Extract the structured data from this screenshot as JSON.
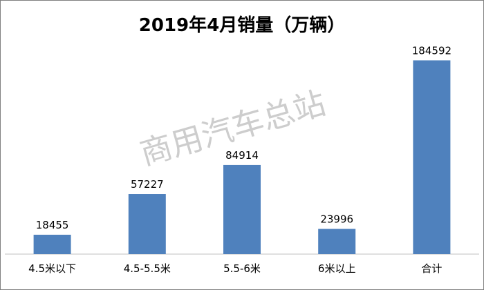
{
  "chart_data": {
    "type": "bar",
    "title": "2019年4月销量（万辆）",
    "categories": [
      "4.5米以下",
      "4.5-5.5米",
      "5.5-6米",
      "6米以上",
      "合计"
    ],
    "series": [
      {
        "values": [
          18455,
          57227,
          84914,
          23996,
          184592
        ]
      }
    ],
    "ylim": [
      0,
      200000
    ],
    "grid": false,
    "legend": "none",
    "xlabel": "",
    "ylabel": "",
    "bar_color": "#4f81bd"
  },
  "watermark": "商用汽车总站"
}
